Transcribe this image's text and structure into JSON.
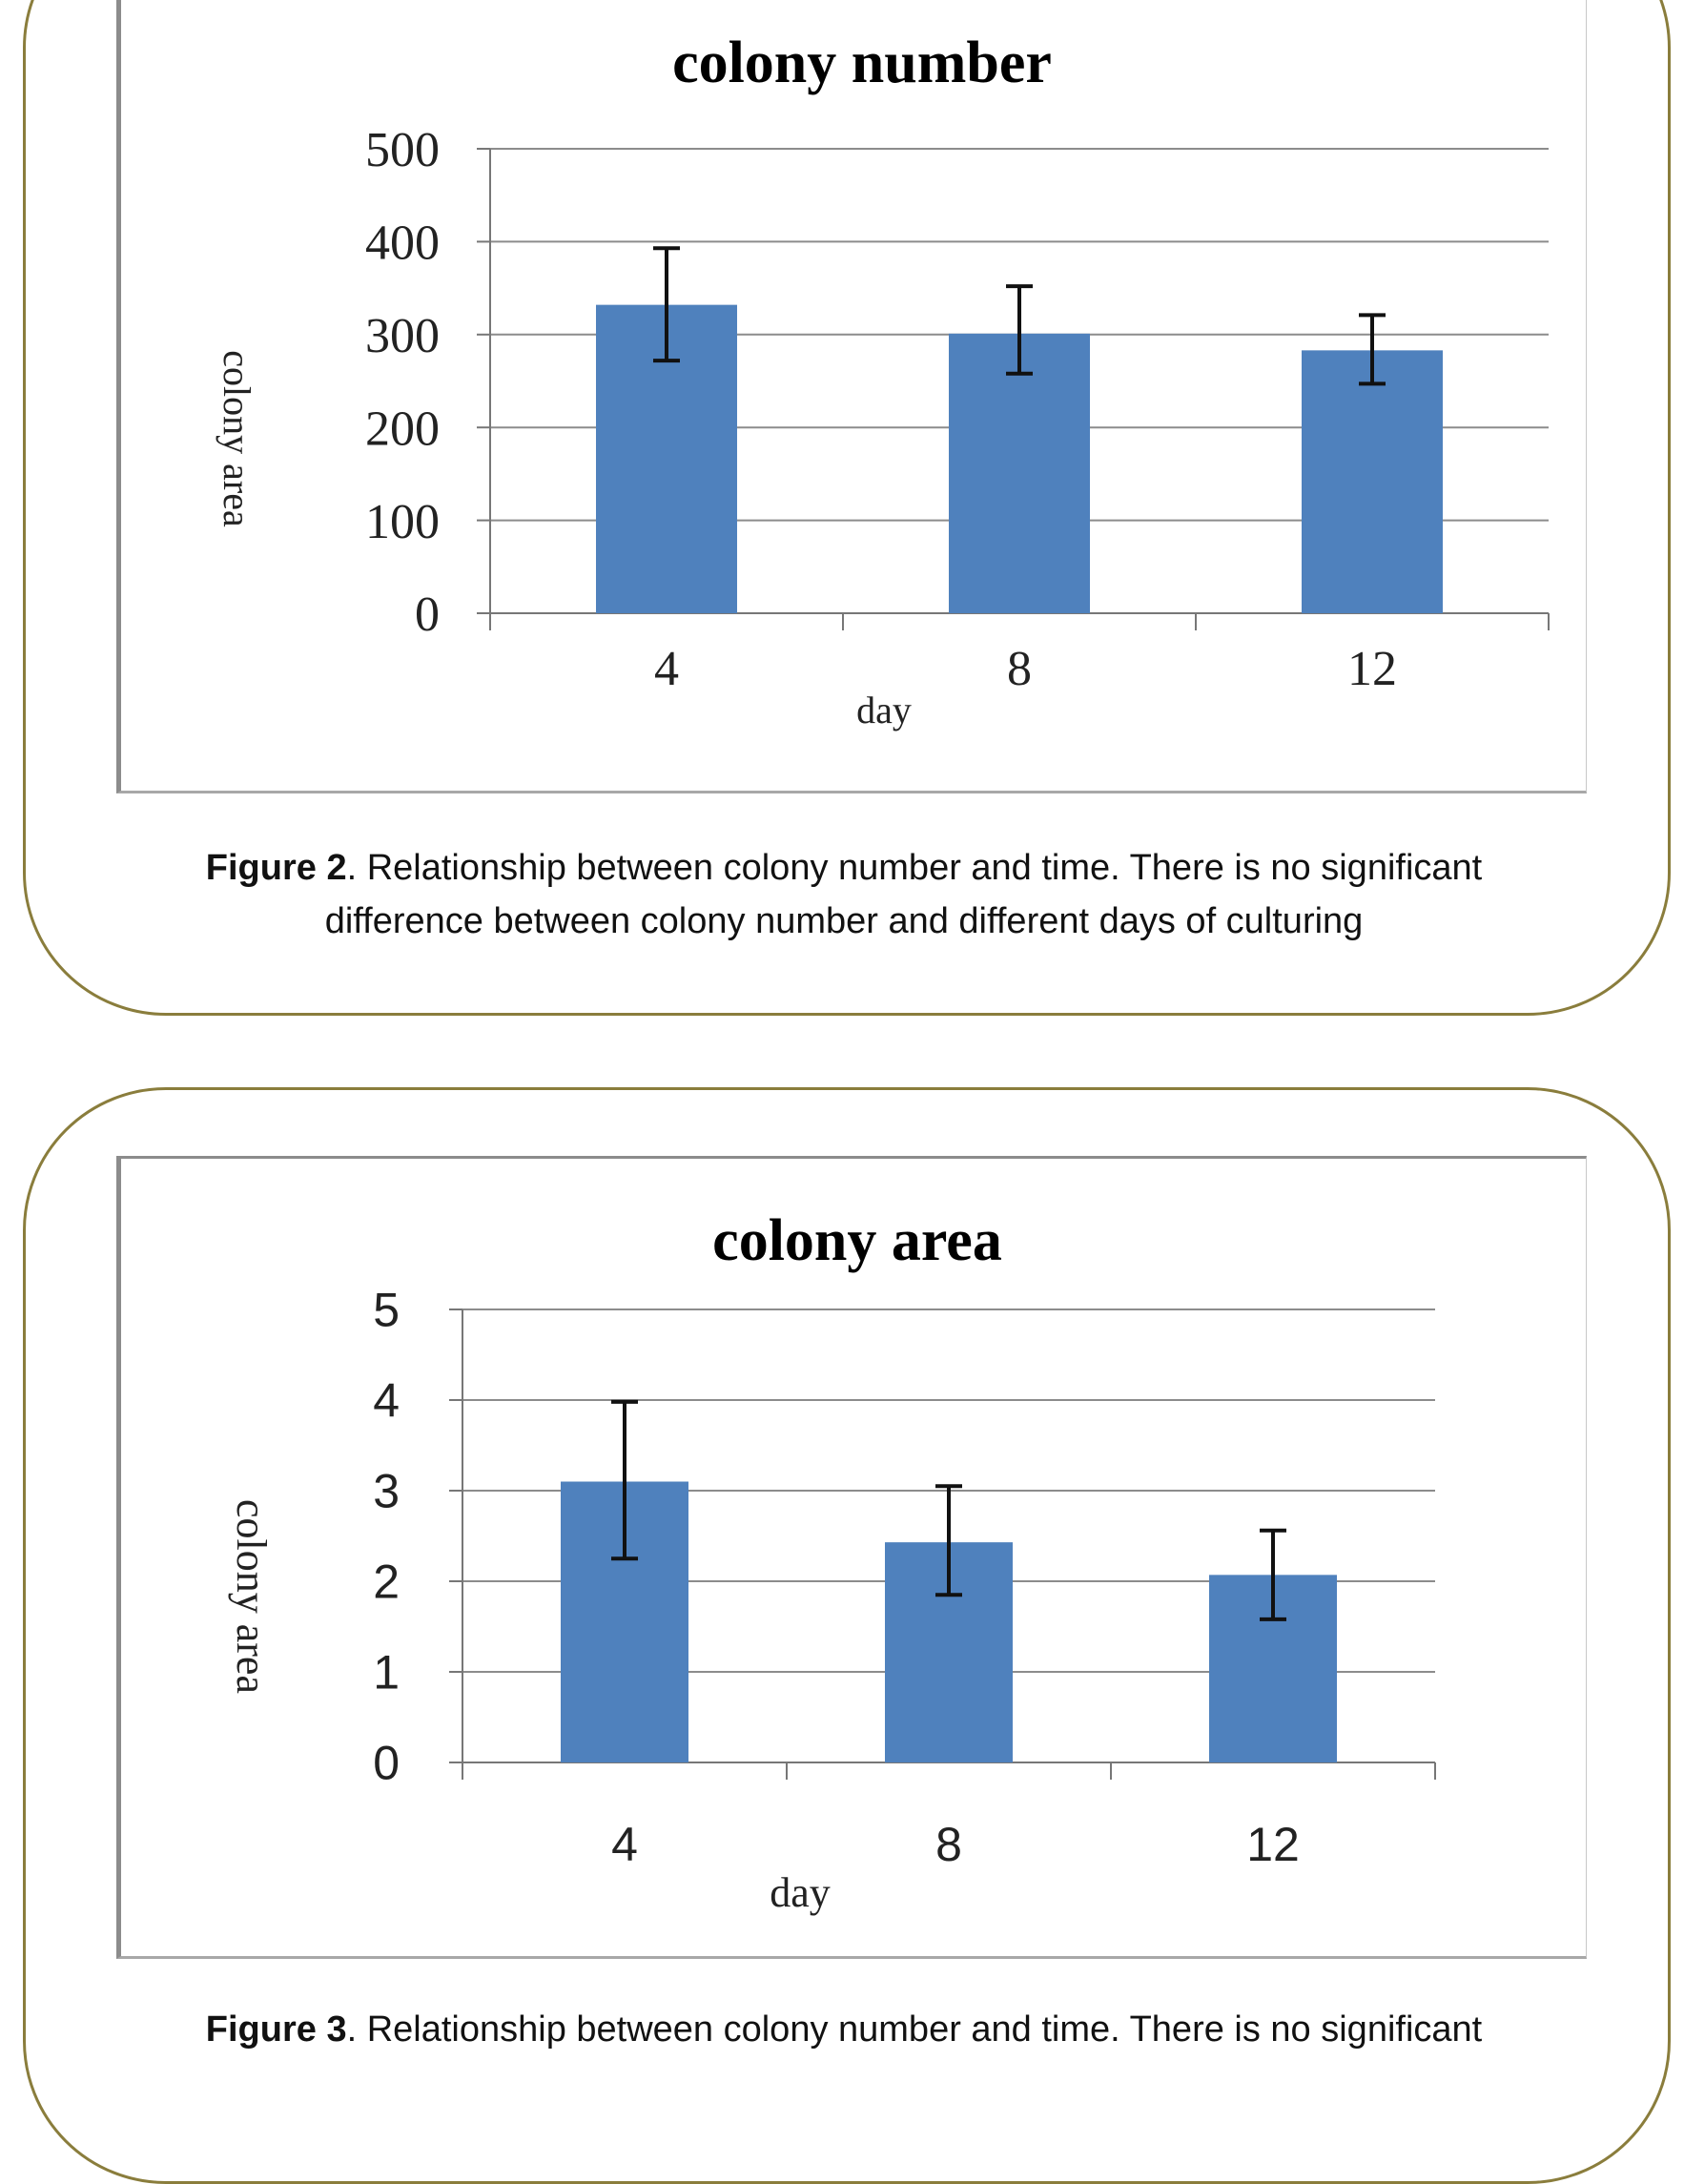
{
  "colors": {
    "bar": "#4f81bd",
    "gridline": "#8c8c8c",
    "panel_border": "#8a7d3c",
    "error_bar": "#111111"
  },
  "figures": [
    {
      "caption_label": "Figure 2",
      "caption_text": ". Relationship between colony number and time. There is no significant difference between colony number and different days of culturing"
    },
    {
      "caption_label": "Figure 3",
      "caption_text": ". Relationship between colony number and time. There is no significant"
    }
  ],
  "chart_data": [
    {
      "type": "bar",
      "title": "colony number",
      "xlabel": "day",
      "ylabel": "colony area",
      "categories": [
        "4",
        "8",
        "12"
      ],
      "values": [
        332,
        301,
        283
      ],
      "error_low": [
        272,
        258,
        247
      ],
      "error_high": [
        393,
        352,
        321
      ],
      "ylim": [
        0,
        500
      ],
      "yticks": [
        0,
        100,
        200,
        300,
        400,
        500
      ],
      "grid": true,
      "font": "serif"
    },
    {
      "type": "bar",
      "title": "colony area",
      "xlabel": "day",
      "ylabel": "colony area",
      "categories": [
        "4",
        "8",
        "12"
      ],
      "values": [
        3.1,
        2.43,
        2.07
      ],
      "error_low": [
        2.25,
        1.85,
        1.58
      ],
      "error_high": [
        3.98,
        3.05,
        2.56
      ],
      "ylim": [
        0,
        5
      ],
      "yticks": [
        0,
        1,
        2,
        3,
        4,
        5
      ],
      "grid": true,
      "font": "sans"
    }
  ]
}
